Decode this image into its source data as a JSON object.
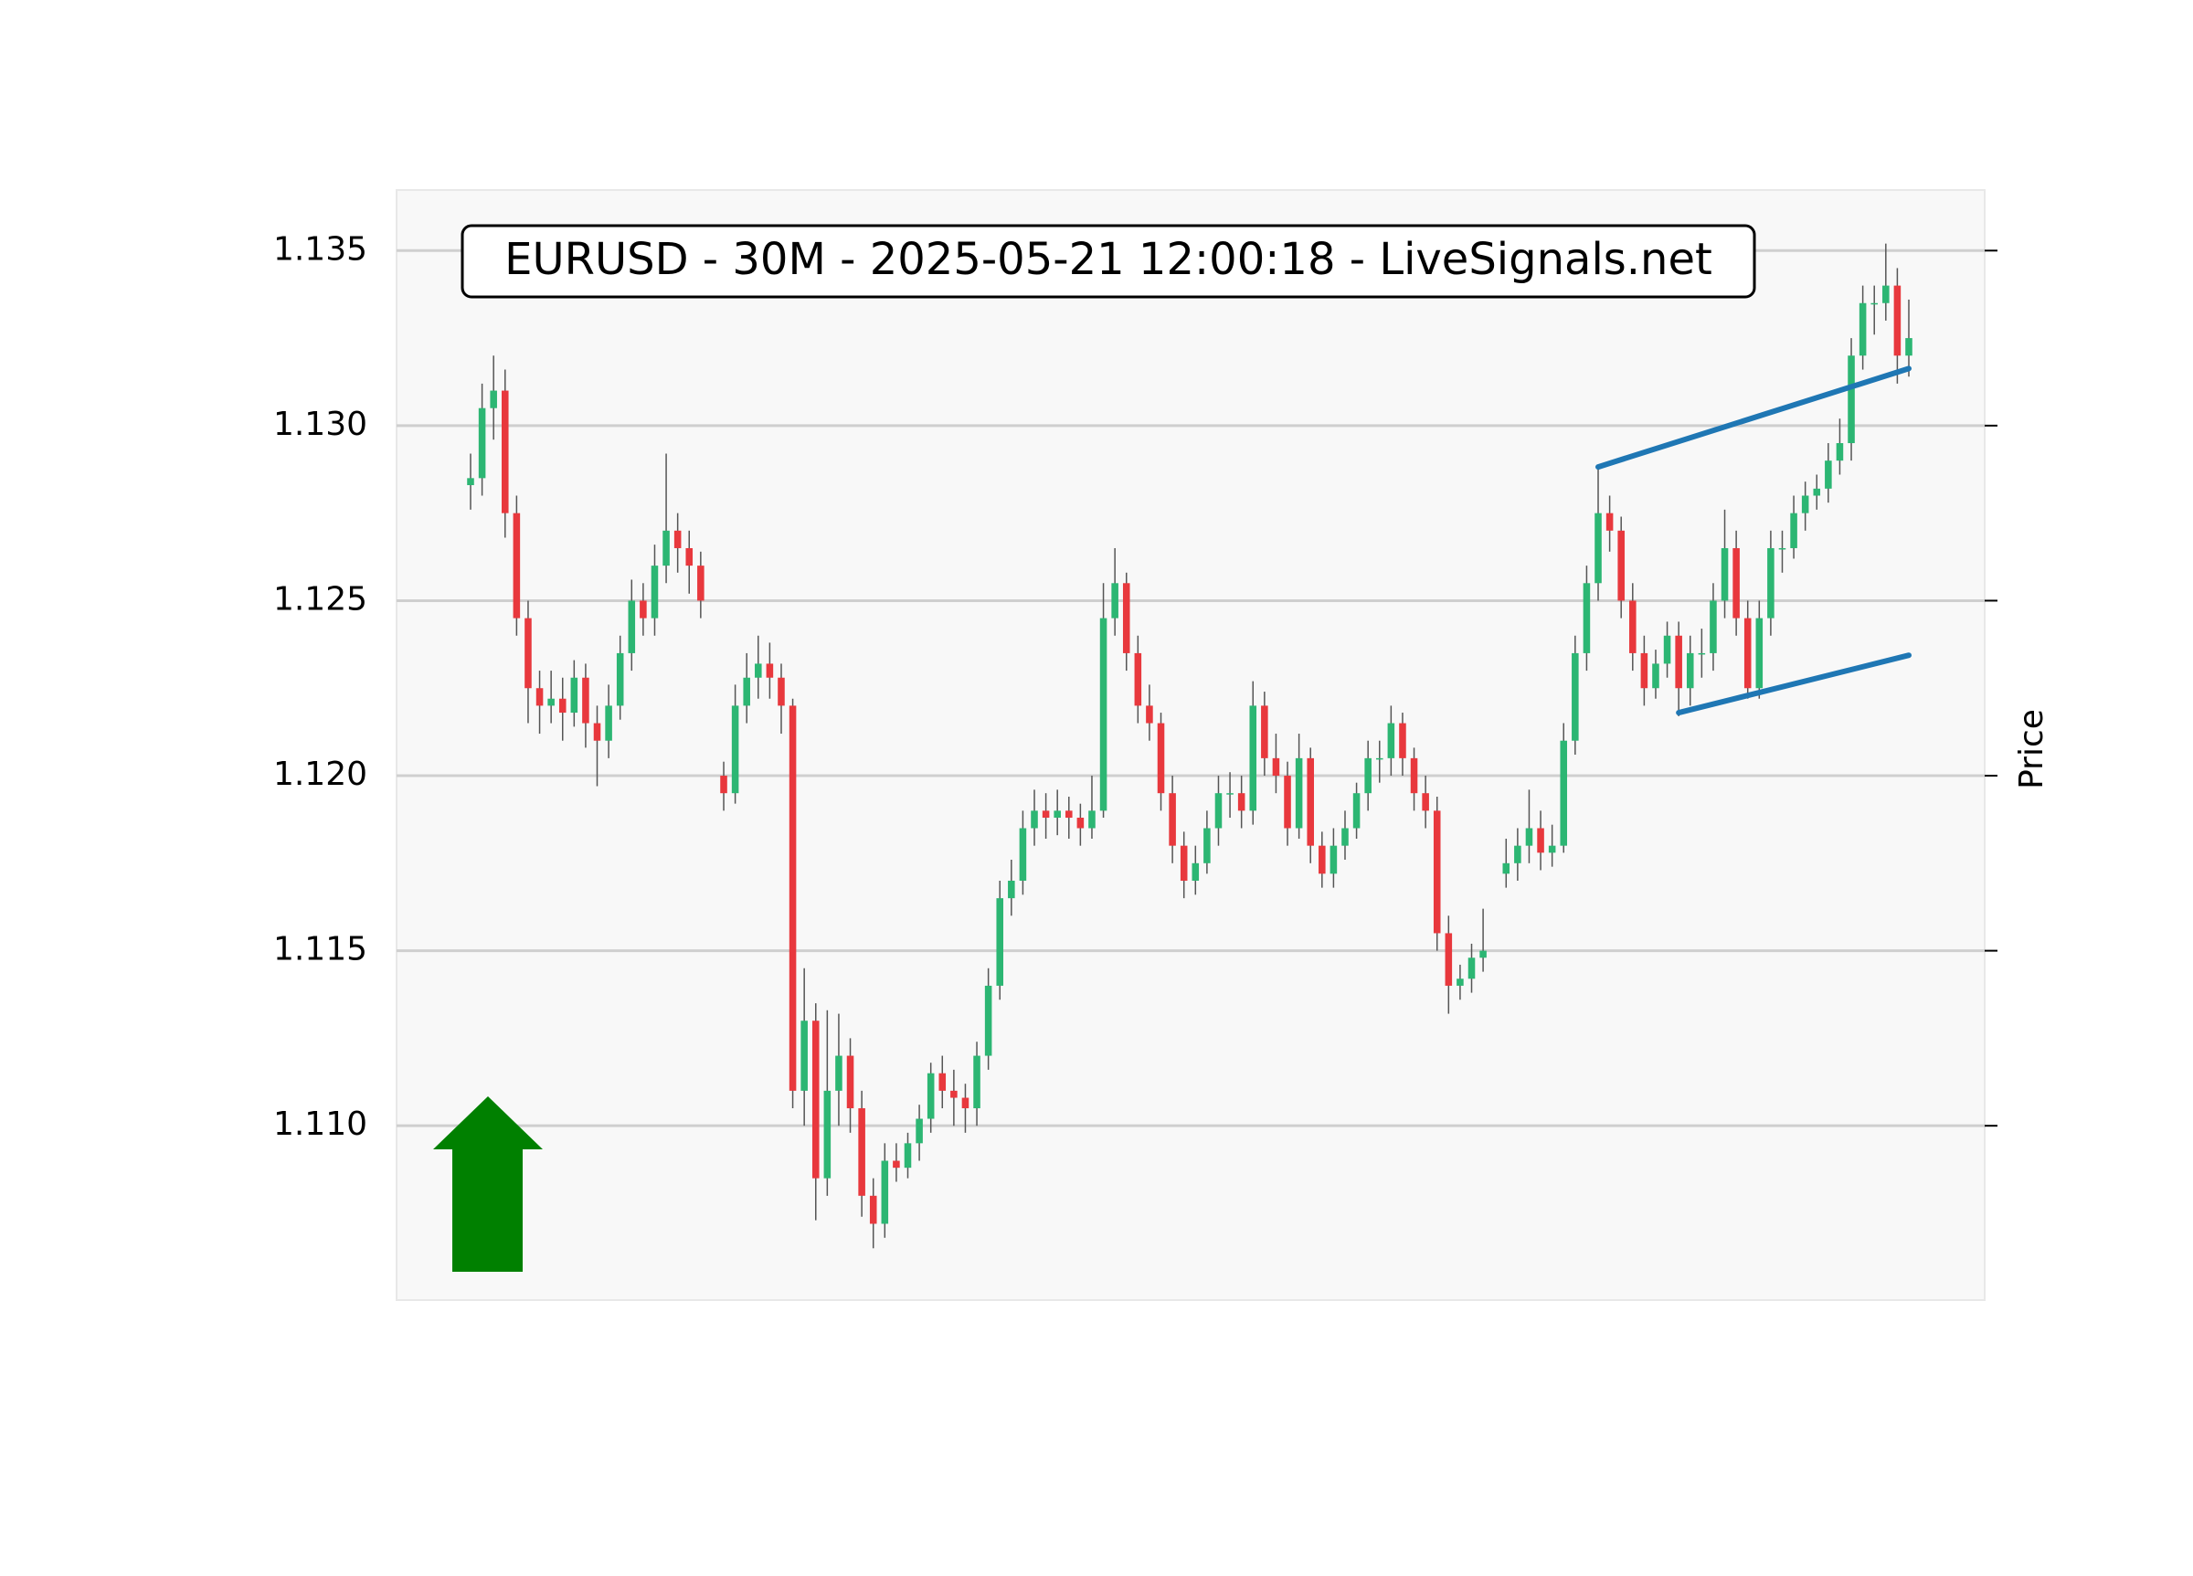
{
  "chart_data": {
    "type": "candlestick",
    "title": "EURUSD - 30M - 2025-05-21 12:00:18 - LiveSignals.net",
    "ylabel": "Price",
    "ylim": [
      1.10502,
      1.13673
    ],
    "yticks": [
      {
        "value": 1.11,
        "label": "1.110"
      },
      {
        "value": 1.115,
        "label": "1.115"
      },
      {
        "value": 1.12,
        "label": "1.120"
      },
      {
        "value": 1.125,
        "label": "1.125"
      },
      {
        "value": 1.13,
        "label": "1.130"
      },
      {
        "value": 1.135,
        "label": "1.135"
      }
    ],
    "grid": true,
    "up_color": "#2cb673",
    "down_color": "#e8383d",
    "wick_color": "#555555",
    "ohlc": [
      [
        1.1283,
        1.1292,
        1.1276,
        1.1285
      ],
      [
        1.1285,
        1.1312,
        1.128,
        1.1305
      ],
      [
        1.1305,
        1.132,
        1.1296,
        1.131
      ],
      [
        1.131,
        1.1316,
        1.1268,
        1.1275
      ],
      [
        1.1275,
        1.128,
        1.124,
        1.1245
      ],
      [
        1.1245,
        1.125,
        1.1215,
        1.1225
      ],
      [
        1.1225,
        1.123,
        1.1212,
        1.122
      ],
      [
        1.122,
        1.123,
        1.1215,
        1.1222
      ],
      [
        1.1222,
        1.1228,
        1.121,
        1.1218
      ],
      [
        1.1218,
        1.1233,
        1.1214,
        1.1228
      ],
      [
        1.1228,
        1.1232,
        1.1208,
        1.1215
      ],
      [
        1.1215,
        1.122,
        1.1197,
        1.121
      ],
      [
        1.121,
        1.1226,
        1.1205,
        1.122
      ],
      [
        1.122,
        1.124,
        1.1216,
        1.1235
      ],
      [
        1.1235,
        1.1256,
        1.123,
        1.125
      ],
      [
        1.125,
        1.1255,
        1.124,
        1.1245
      ],
      [
        1.1245,
        1.1266,
        1.124,
        1.126
      ],
      [
        1.126,
        1.1292,
        1.1255,
        1.127
      ],
      [
        1.127,
        1.1275,
        1.1258,
        1.1265
      ],
      [
        1.1265,
        1.127,
        1.1252,
        1.126
      ],
      [
        1.126,
        1.1264,
        1.1245,
        1.125
      ],
      null,
      [
        1.12,
        1.1204,
        1.119,
        1.1195
      ],
      [
        1.1195,
        1.1226,
        1.1192,
        1.122
      ],
      [
        1.122,
        1.1235,
        1.1215,
        1.1228
      ],
      [
        1.1228,
        1.124,
        1.1222,
        1.1232
      ],
      [
        1.1232,
        1.1238,
        1.1222,
        1.1228
      ],
      [
        1.1228,
        1.1232,
        1.1212,
        1.122
      ],
      [
        1.122,
        1.1222,
        1.1105,
        1.111
      ],
      [
        1.111,
        1.1145,
        1.11,
        1.113
      ],
      [
        1.113,
        1.1135,
        1.1073,
        1.1085
      ],
      [
        1.1085,
        1.1133,
        1.108,
        1.111
      ],
      [
        1.111,
        1.1132,
        1.11,
        1.112
      ],
      [
        1.112,
        1.1125,
        1.1098,
        1.1105
      ],
      [
        1.1105,
        1.111,
        1.1074,
        1.108
      ],
      [
        1.108,
        1.1085,
        1.1065,
        1.1072
      ],
      [
        1.1072,
        1.1095,
        1.1068,
        1.109
      ],
      [
        1.109,
        1.1095,
        1.1084,
        1.1088
      ],
      [
        1.1088,
        1.1098,
        1.1085,
        1.1095
      ],
      [
        1.1095,
        1.1106,
        1.109,
        1.1102
      ],
      [
        1.1102,
        1.1118,
        1.1098,
        1.1115
      ],
      [
        1.1115,
        1.112,
        1.1105,
        1.111
      ],
      [
        1.111,
        1.1116,
        1.11,
        1.1108
      ],
      [
        1.1108,
        1.1112,
        1.1098,
        1.1105
      ],
      [
        1.1105,
        1.1124,
        1.11,
        1.112
      ],
      [
        1.112,
        1.1145,
        1.1116,
        1.114
      ],
      [
        1.114,
        1.117,
        1.1136,
        1.1165
      ],
      [
        1.1165,
        1.1176,
        1.116,
        1.117
      ],
      [
        1.117,
        1.119,
        1.1166,
        1.1185
      ],
      [
        1.1185,
        1.1196,
        1.118,
        1.119
      ],
      [
        1.119,
        1.1195,
        1.1182,
        1.1188
      ],
      [
        1.1188,
        1.1196,
        1.1183,
        1.119
      ],
      [
        1.119,
        1.1194,
        1.1182,
        1.1188
      ],
      [
        1.1188,
        1.1192,
        1.118,
        1.1185
      ],
      [
        1.1185,
        1.12,
        1.1182,
        1.119
      ],
      [
        1.119,
        1.1255,
        1.1188,
        1.1245
      ],
      [
        1.1245,
        1.1265,
        1.124,
        1.1255
      ],
      [
        1.1255,
        1.1258,
        1.123,
        1.1235
      ],
      [
        1.1235,
        1.124,
        1.1215,
        1.122
      ],
      [
        1.122,
        1.1226,
        1.121,
        1.1215
      ],
      [
        1.1215,
        1.1218,
        1.119,
        1.1195
      ],
      [
        1.1195,
        1.12,
        1.1175,
        1.118
      ],
      [
        1.118,
        1.1184,
        1.1165,
        1.117
      ],
      [
        1.117,
        1.118,
        1.1166,
        1.1175
      ],
      [
        1.1175,
        1.119,
        1.1172,
        1.1185
      ],
      [
        1.1185,
        1.12,
        1.118,
        1.1195
      ],
      [
        1.1195,
        1.1201,
        1.1188,
        1.1195
      ],
      [
        1.1195,
        1.12,
        1.1185,
        1.119
      ],
      [
        1.119,
        1.1227,
        1.1186,
        1.122
      ],
      [
        1.122,
        1.1224,
        1.12,
        1.1205
      ],
      [
        1.1205,
        1.1212,
        1.1195,
        1.12
      ],
      [
        1.12,
        1.1204,
        1.118,
        1.1185
      ],
      [
        1.1185,
        1.1212,
        1.1182,
        1.1205
      ],
      [
        1.1205,
        1.1208,
        1.1175,
        1.118
      ],
      [
        1.118,
        1.1184,
        1.1168,
        1.1172
      ],
      [
        1.1172,
        1.1185,
        1.1168,
        1.118
      ],
      [
        1.118,
        1.119,
        1.1176,
        1.1185
      ],
      [
        1.1185,
        1.1198,
        1.1182,
        1.1195
      ],
      [
        1.1195,
        1.121,
        1.119,
        1.1205
      ],
      [
        1.1205,
        1.121,
        1.1198,
        1.1205
      ],
      [
        1.1205,
        1.122,
        1.12,
        1.1215
      ],
      [
        1.1215,
        1.1218,
        1.12,
        1.1205
      ],
      [
        1.1205,
        1.1208,
        1.119,
        1.1195
      ],
      [
        1.1195,
        1.12,
        1.1185,
        1.119
      ],
      [
        1.119,
        1.1194,
        1.115,
        1.1155
      ],
      [
        1.1155,
        1.116,
        1.1132,
        1.114
      ],
      [
        1.114,
        1.1146,
        1.1136,
        1.1142
      ],
      [
        1.1142,
        1.1152,
        1.1138,
        1.1148
      ],
      [
        1.1148,
        1.1162,
        1.1144,
        1.115
      ],
      null,
      [
        1.1172,
        1.1182,
        1.1168,
        1.1175
      ],
      [
        1.1175,
        1.1185,
        1.117,
        1.118
      ],
      [
        1.118,
        1.1196,
        1.1175,
        1.1185
      ],
      [
        1.1185,
        1.119,
        1.1173,
        1.1178
      ],
      [
        1.1178,
        1.1186,
        1.1174,
        1.118
      ],
      [
        1.118,
        1.1215,
        1.1178,
        1.121
      ],
      [
        1.121,
        1.124,
        1.1206,
        1.1235
      ],
      [
        1.1235,
        1.126,
        1.123,
        1.1255
      ],
      [
        1.1255,
        1.1288,
        1.125,
        1.1275
      ],
      [
        1.1275,
        1.128,
        1.1264,
        1.127
      ],
      [
        1.127,
        1.1274,
        1.1245,
        1.125
      ],
      [
        1.125,
        1.1255,
        1.123,
        1.1235
      ],
      [
        1.1235,
        1.124,
        1.122,
        1.1225
      ],
      [
        1.1225,
        1.1236,
        1.1222,
        1.1232
      ],
      [
        1.1232,
        1.1244,
        1.1228,
        1.124
      ],
      [
        1.124,
        1.1244,
        1.1217,
        1.1225
      ],
      [
        1.1225,
        1.124,
        1.122,
        1.1235
      ],
      [
        1.1235,
        1.1242,
        1.1228,
        1.1235
      ],
      [
        1.1235,
        1.1255,
        1.123,
        1.125
      ],
      [
        1.125,
        1.1276,
        1.1245,
        1.1265
      ],
      [
        1.1265,
        1.127,
        1.124,
        1.1245
      ],
      [
        1.1245,
        1.125,
        1.1222,
        1.1225
      ],
      [
        1.1225,
        1.125,
        1.1222,
        1.1245
      ],
      [
        1.1245,
        1.127,
        1.124,
        1.1265
      ],
      [
        1.1265,
        1.127,
        1.1258,
        1.1265
      ],
      [
        1.1265,
        1.128,
        1.1262,
        1.1275
      ],
      [
        1.1275,
        1.1284,
        1.127,
        1.128
      ],
      [
        1.128,
        1.1286,
        1.1276,
        1.1282
      ],
      [
        1.1282,
        1.1295,
        1.1278,
        1.129
      ],
      [
        1.129,
        1.1302,
        1.1286,
        1.1295
      ],
      [
        1.1295,
        1.1325,
        1.129,
        1.132
      ],
      [
        1.132,
        1.134,
        1.1316,
        1.1335
      ],
      [
        1.1335,
        1.134,
        1.1326,
        1.1335
      ],
      [
        1.1335,
        1.1352,
        1.133,
        1.134
      ],
      [
        1.134,
        1.1345,
        1.1312,
        1.132
      ],
      [
        1.132,
        1.1336,
        1.1314,
        1.1325
      ]
    ],
    "trendlines": [
      {
        "color": "#1f77b4",
        "start": 98,
        "end": 125,
        "values": [
          1.12882,
          1.13163
        ]
      },
      {
        "color": "#1f77b4",
        "start": 105,
        "end": 125,
        "values": [
          1.1218,
          1.12344
        ]
      }
    ]
  }
}
